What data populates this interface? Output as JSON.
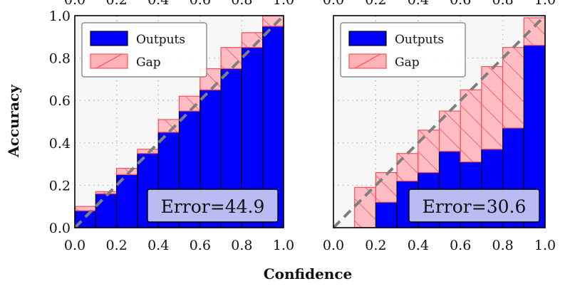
{
  "chart_data": [
    {
      "type": "bar",
      "x": [
        0.05,
        0.15,
        0.25,
        0.35,
        0.45,
        0.55,
        0.65,
        0.75,
        0.85,
        0.95
      ],
      "series": [
        {
          "name": "Outputs",
          "values": [
            0.08,
            0.16,
            0.25,
            0.35,
            0.45,
            0.55,
            0.65,
            0.75,
            0.85,
            0.95
          ]
        },
        {
          "name": "Gap",
          "values": [
            0.02,
            0.01,
            0.03,
            0.02,
            0.06,
            0.07,
            0.1,
            0.1,
            0.07,
            0.05
          ]
        }
      ],
      "expected": [
        0.1,
        0.17,
        0.28,
        0.37,
        0.51,
        0.62,
        0.75,
        0.85,
        0.92,
        1.0
      ],
      "xlim": [
        0,
        1
      ],
      "ylim": [
        0,
        1
      ],
      "xticks": [
        "0.0",
        "0.2",
        "0.4",
        "0.6",
        "0.8",
        "1.0"
      ],
      "yticks": [
        "0.0",
        "0.2",
        "0.4",
        "0.6",
        "0.8",
        "1.0"
      ],
      "xlabel": "Confidence",
      "ylabel": "Accuracy",
      "annotation": "Error=44.9",
      "legend_position": "top-left",
      "grid": true,
      "colors": {
        "outputs": "#0000ff",
        "gap": "#ffb3b8",
        "gap_edge": "#ff4d57",
        "diagonal": "#7f7f7f"
      }
    },
    {
      "type": "bar",
      "x": [
        0.05,
        0.15,
        0.25,
        0.35,
        0.45,
        0.55,
        0.65,
        0.75,
        0.85,
        0.95
      ],
      "series": [
        {
          "name": "Outputs",
          "values": [
            0.0,
            0.0,
            0.12,
            0.22,
            0.26,
            0.36,
            0.31,
            0.37,
            0.47,
            0.86
          ]
        },
        {
          "name": "Gap",
          "values": [
            0.0,
            0.19,
            0.14,
            0.13,
            0.2,
            0.19,
            0.34,
            0.39,
            0.38,
            0.13
          ]
        }
      ],
      "expected": [
        0.0,
        0.19,
        0.26,
        0.35,
        0.46,
        0.55,
        0.65,
        0.76,
        0.85,
        0.99
      ],
      "xlim": [
        0,
        1
      ],
      "ylim": [
        0,
        1
      ],
      "xticks": [
        "0.0",
        "0.2",
        "0.4",
        "0.6",
        "0.8",
        "1.0"
      ],
      "annotation": "Error=30.6",
      "legend_position": "top-left",
      "grid": true,
      "colors": {
        "outputs": "#0000ff",
        "gap": "#ffb3b8",
        "gap_edge": "#ff4d57",
        "diagonal": "#7f7f7f"
      }
    }
  ]
}
